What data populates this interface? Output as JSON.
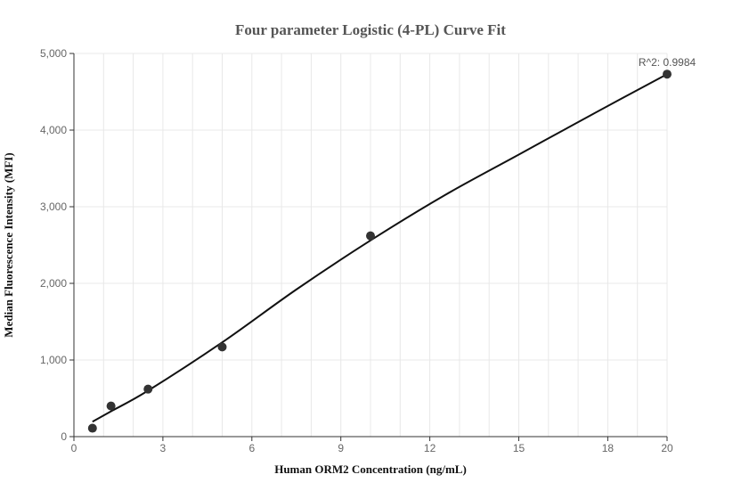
{
  "chart_data": {
    "type": "scatter",
    "title": "Four parameter Logistic (4-PL) Curve Fit",
    "xlabel": "Human ORM2 Concentration (ng/mL)",
    "ylabel": "Median Fluorescence Intensity (MFI)",
    "xlim": [
      0,
      20
    ],
    "ylim": [
      0,
      5000
    ],
    "x_ticks": [
      0,
      3,
      6,
      9,
      12,
      15,
      18,
      20
    ],
    "y_ticks": [
      0,
      1000,
      2000,
      3000,
      4000,
      5000
    ],
    "x_tick_labels": [
      "0",
      "3",
      "6",
      "9",
      "12",
      "15",
      "18",
      "20"
    ],
    "y_tick_labels": [
      "0",
      "1,000",
      "2,000",
      "3,000",
      "4,000",
      "5,000"
    ],
    "grid": true,
    "legend": "none",
    "annotation": "R^2: 0.9984",
    "points": [
      {
        "x": 0.625,
        "y": 110
      },
      {
        "x": 1.25,
        "y": 400
      },
      {
        "x": 2.5,
        "y": 620
      },
      {
        "x": 5,
        "y": 1170
      },
      {
        "x": 10,
        "y": 2620
      },
      {
        "x": 20,
        "y": 4730
      }
    ],
    "fit_curve": [
      {
        "x": 0.625,
        "y": 195
      },
      {
        "x": 1.25,
        "y": 330
      },
      {
        "x": 2.5,
        "y": 600
      },
      {
        "x": 5,
        "y": 1230
      },
      {
        "x": 7.5,
        "y": 1920
      },
      {
        "x": 10,
        "y": 2560
      },
      {
        "x": 12.5,
        "y": 3150
      },
      {
        "x": 15,
        "y": 3680
      },
      {
        "x": 17.5,
        "y": 4210
      },
      {
        "x": 20,
        "y": 4730
      }
    ],
    "colors": {
      "point": "#333333",
      "curve": "#111111",
      "grid": "#e8e8e8",
      "axis": "#333333"
    }
  }
}
